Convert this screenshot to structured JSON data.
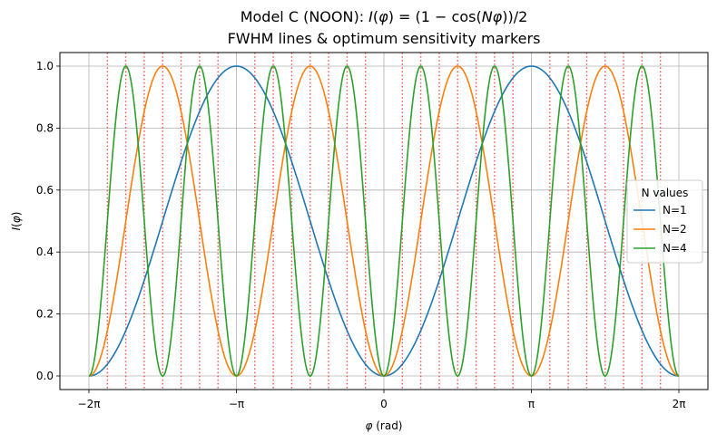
{
  "chart_data": {
    "type": "line",
    "title_line1": "Model C (NOON): I(φ) = (1 − cos(Nφ))/2",
    "title_line2": "FWHM lines & optimum sensitivity markers",
    "xlabel": "φ (rad)",
    "ylabel": "I(φ)",
    "xlim": [
      -6.2832,
      6.2832
    ],
    "ylim": [
      0.0,
      1.0
    ],
    "grid": true,
    "legend_title": "N values",
    "legend_position": "center-right",
    "x_ticks": [
      {
        "value": -6.2832,
        "label": "−2π"
      },
      {
        "value": -3.1416,
        "label": "−π"
      },
      {
        "value": 0,
        "label": "0"
      },
      {
        "value": 3.1416,
        "label": "π"
      },
      {
        "value": 6.2832,
        "label": "2π"
      }
    ],
    "y_ticks": [
      {
        "value": 0.0,
        "label": "0.0"
      },
      {
        "value": 0.2,
        "label": "0.2"
      },
      {
        "value": 0.4,
        "label": "0.4"
      },
      {
        "value": 0.6,
        "label": "0.6"
      },
      {
        "value": 0.8,
        "label": "0.8"
      },
      {
        "value": 1.0,
        "label": "1.0"
      }
    ],
    "series": [
      {
        "name": "N=1",
        "N": 1,
        "color": "#1f77b4",
        "x": [
          -6.2832,
          -5.4978,
          -4.7124,
          -3.927,
          -3.1416,
          -2.3562,
          -1.5708,
          -0.7854,
          0,
          0.7854,
          1.5708,
          2.3562,
          3.1416,
          3.927,
          4.7124,
          5.4978,
          6.2832
        ],
        "y": [
          0,
          0.146,
          0.5,
          0.854,
          1,
          0.854,
          0.5,
          0.146,
          0,
          0.146,
          0.5,
          0.854,
          1,
          0.854,
          0.5,
          0.146,
          0
        ]
      },
      {
        "name": "N=2",
        "N": 2,
        "color": "#ff7f0e",
        "x": [
          -6.2832,
          -5.4978,
          -4.7124,
          -3.927,
          -3.1416,
          -2.3562,
          -1.5708,
          -0.7854,
          0,
          0.7854,
          1.5708,
          2.3562,
          3.1416,
          3.927,
          4.7124,
          5.4978,
          6.2832
        ],
        "y": [
          0,
          0.5,
          1,
          0.5,
          0,
          0.5,
          1,
          0.5,
          0,
          0.5,
          1,
          0.5,
          0,
          0.5,
          1,
          0.5,
          0
        ]
      },
      {
        "name": "N=4",
        "N": 4,
        "color": "#2ca02c",
        "x": [
          -6.2832,
          -5.8905,
          -5.4978,
          -5.1051,
          -4.7124,
          -4.3197,
          -3.927,
          -3.5343,
          -3.1416,
          -2.7489,
          -2.3562,
          -1.9635,
          -1.5708,
          -1.1781,
          -0.7854,
          -0.3927,
          0,
          0.3927,
          0.7854,
          1.1781,
          1.5708,
          1.9635,
          2.3562,
          2.7489,
          3.1416,
          3.5343,
          3.927,
          4.3197,
          4.7124,
          5.1051,
          5.4978,
          5.8905,
          6.2832
        ],
        "y": [
          0,
          0.5,
          1,
          0.5,
          0,
          0.5,
          1,
          0.5,
          0,
          0.5,
          1,
          0.5,
          0,
          0.5,
          1,
          0.5,
          0,
          0.5,
          1,
          0.5,
          0,
          0.5,
          1,
          0.5,
          0,
          0.5,
          1,
          0.5,
          0,
          0.5,
          1,
          0.5,
          0
        ]
      }
    ],
    "marker_lines": {
      "style": "dotted",
      "color": "#ff0000",
      "x": [
        -5.8905,
        -5.4978,
        -5.1051,
        -4.7124,
        -4.3197,
        -3.927,
        -3.5343,
        -2.7489,
        -2.3562,
        -1.9635,
        -1.5708,
        -1.1781,
        -0.7854,
        -0.3927,
        0.3927,
        0.7854,
        1.1781,
        1.5708,
        1.9635,
        2.3562,
        2.7489,
        3.5343,
        3.927,
        4.3197,
        4.7124,
        5.1051,
        5.4978,
        5.8905
      ]
    }
  }
}
